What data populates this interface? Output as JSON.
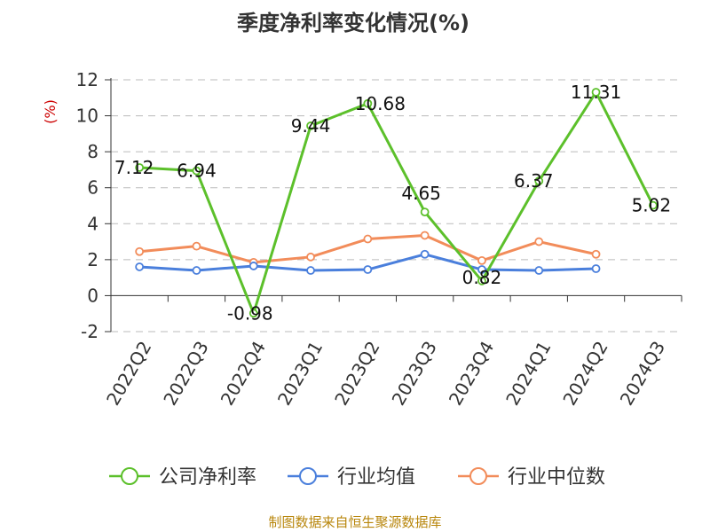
{
  "chart_data": {
    "type": "line",
    "title": "季度净利率变化情况(%)",
    "unit_label": "(%)",
    "categories": [
      "2022Q2",
      "2022Q3",
      "2022Q4",
      "2023Q1",
      "2023Q2",
      "2023Q3",
      "2023Q4",
      "2024Q1",
      "2024Q2",
      "2024Q3"
    ],
    "y_ticks": [
      "12",
      "10",
      "8",
      "6",
      "4",
      "2",
      "0",
      "-2"
    ],
    "ylim": [
      -2,
      12
    ],
    "grid": true,
    "series": [
      {
        "name": "公司净利率",
        "color": "#5cc02b",
        "values": [
          7.12,
          6.94,
          -0.98,
          9.44,
          10.68,
          4.65,
          0.82,
          6.37,
          11.31,
          5.02
        ],
        "labels": [
          "7.12",
          "6.94",
          "-0.98",
          "9.44",
          "10.68",
          "4.65",
          "0.82",
          "6.37",
          "11.31",
          "5.02"
        ]
      },
      {
        "name": "行业均值",
        "color": "#4a7fdc",
        "values": [
          1.6,
          1.4,
          1.65,
          1.4,
          1.45,
          2.3,
          1.45,
          1.4,
          1.5,
          null
        ]
      },
      {
        "name": "行业中位数",
        "color": "#f28c5a",
        "values": [
          2.45,
          2.75,
          1.85,
          2.15,
          3.15,
          3.35,
          1.95,
          3.0,
          2.3,
          null
        ]
      }
    ],
    "legend_position": "bottom"
  },
  "source_text": "制图数据来自恒生聚源数据库"
}
